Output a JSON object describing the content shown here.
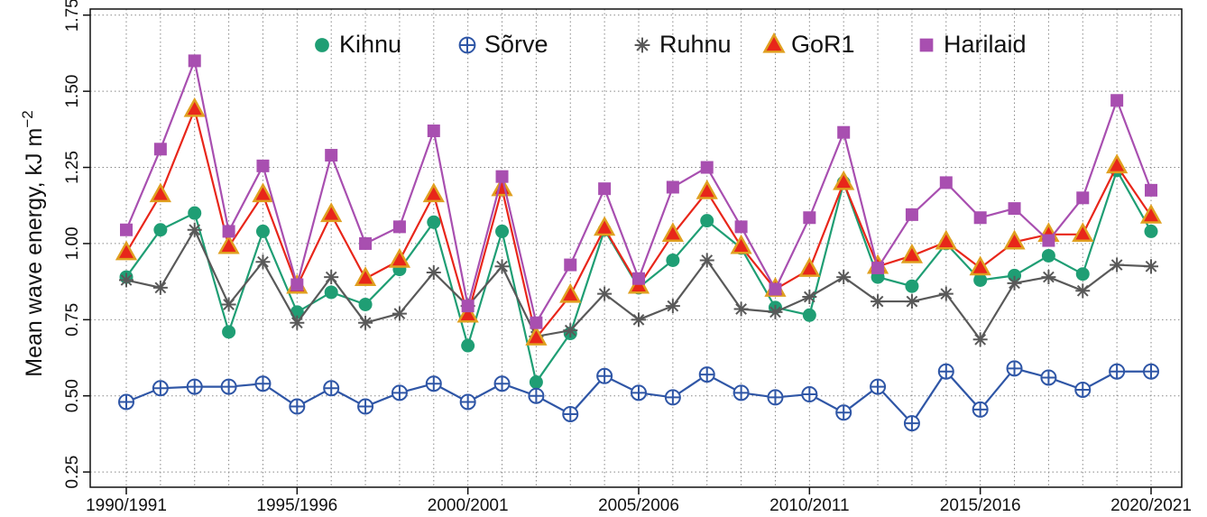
{
  "chart_data": {
    "type": "line",
    "ylabel": "Mean wave energy, kJ m",
    "ylabel_exponent": "−2",
    "categories": [
      "1990/1991",
      null,
      null,
      null,
      null,
      "1995/1996",
      null,
      null,
      null,
      null,
      "2000/2001",
      null,
      null,
      null,
      null,
      "2005/2006",
      null,
      null,
      null,
      null,
      "2010/2011",
      null,
      null,
      null,
      null,
      "2015/2016",
      null,
      null,
      null,
      null,
      "2020/2021"
    ],
    "ylim": [
      0.2,
      1.77
    ],
    "yticks": [
      {
        "value": 0.25,
        "label": "0.25"
      },
      {
        "value": 0.5,
        "label": "0.50"
      },
      {
        "value": 0.75,
        "label": "0.75"
      },
      {
        "value": 1,
        "label": "1.00"
      },
      {
        "value": 1.25,
        "label": "1.25"
      },
      {
        "value": 1.5,
        "label": "1.50"
      },
      {
        "value": 1.75,
        "label": "1.75"
      }
    ],
    "grid": true,
    "legend": "top",
    "series": [
      {
        "name": "Kihnu",
        "color": "#1f9e74",
        "marker": "circle",
        "values": [
          0.89,
          1.045,
          1.1,
          0.71,
          1.04,
          0.775,
          0.84,
          0.8,
          0.915,
          1.07,
          0.665,
          1.04,
          0.545,
          0.705,
          1.045,
          0.855,
          0.945,
          1.075,
          0.985,
          0.79,
          0.765,
          1.2,
          0.89,
          0.86,
          1.0,
          0.88,
          0.895,
          0.96,
          0.9,
          1.24,
          1.04
        ]
      },
      {
        "name": "Sõrve",
        "color": "#2f56a6",
        "marker": "circle-plus",
        "values": [
          0.48,
          0.525,
          0.53,
          0.53,
          0.54,
          0.465,
          0.525,
          0.465,
          0.51,
          0.54,
          0.48,
          0.54,
          0.5,
          0.44,
          0.565,
          0.51,
          0.495,
          0.57,
          0.51,
          0.495,
          0.505,
          0.445,
          0.53,
          0.41,
          0.58,
          0.455,
          0.59,
          0.56,
          0.52,
          0.58,
          0.58
        ]
      },
      {
        "name": "Ruhnu",
        "color": "#595959",
        "marker": "asterisk",
        "values": [
          0.88,
          0.855,
          1.045,
          0.8,
          0.94,
          0.74,
          0.89,
          0.74,
          0.77,
          0.905,
          0.795,
          0.925,
          0.695,
          0.715,
          0.835,
          0.75,
          0.795,
          0.945,
          0.785,
          0.775,
          0.825,
          0.89,
          0.81,
          0.81,
          0.835,
          0.685,
          0.87,
          0.89,
          0.845,
          0.93,
          0.925
        ]
      },
      {
        "name": "GoR1",
        "color": "#e8261a",
        "edge_color": "#e0a020",
        "marker": "triangle",
        "values": [
          0.97,
          1.16,
          1.44,
          0.99,
          1.16,
          0.86,
          1.095,
          0.885,
          0.945,
          1.16,
          0.765,
          1.18,
          0.69,
          0.83,
          1.05,
          0.86,
          1.03,
          1.17,
          0.99,
          0.85,
          0.915,
          1.2,
          0.925,
          0.96,
          1.005,
          0.92,
          1.005,
          1.03,
          1.03,
          1.255,
          1.09
        ]
      },
      {
        "name": "Harilaid",
        "color": "#a84fb0",
        "marker": "square",
        "values": [
          1.045,
          1.31,
          1.6,
          1.04,
          1.255,
          0.865,
          1.29,
          1.0,
          1.055,
          1.37,
          0.795,
          1.22,
          0.74,
          0.93,
          1.18,
          0.885,
          1.185,
          1.25,
          1.055,
          0.85,
          1.085,
          1.365,
          0.92,
          1.095,
          1.2,
          1.085,
          1.115,
          1.01,
          1.15,
          1.47,
          1.175
        ]
      }
    ]
  }
}
